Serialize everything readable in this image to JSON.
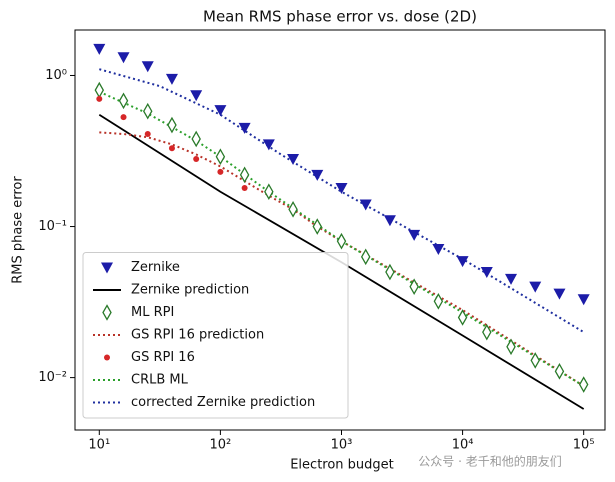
{
  "chart_data": {
    "type": "scatter",
    "title": "Mean RMS phase error vs. dose (2D)",
    "xlabel": "Electron budget",
    "ylabel": "RMS phase error",
    "xscale": "log",
    "yscale": "log",
    "xlim": [
      6.3,
      150000
    ],
    "ylim": [
      0.0045,
      2.0
    ],
    "xticks": [
      {
        "value": 10,
        "label": "10¹"
      },
      {
        "value": 100,
        "label": "10²"
      },
      {
        "value": 1000,
        "label": "10³"
      },
      {
        "value": 10000,
        "label": "10⁴"
      },
      {
        "value": 100000,
        "label": "10⁵"
      }
    ],
    "yticks": [
      {
        "value": 0.01,
        "label": "10⁻²"
      },
      {
        "value": 0.1,
        "label": "10⁻¹"
      },
      {
        "value": 1,
        "label": "10⁰"
      }
    ],
    "legend": "lower left",
    "annotation": "公众号 · 老千和他的朋友们",
    "series": [
      {
        "name": "Zernike",
        "kind": "marker",
        "marker": "triangle-down",
        "color": "#1c1ca8",
        "x": [
          10,
          15.85,
          25.12,
          39.81,
          63.1,
          100,
          158.5,
          251.2,
          398.1,
          631,
          1000,
          1585,
          2512,
          3981,
          6310,
          10000,
          15849,
          25119,
          39811,
          63096,
          100000
        ],
        "values": [
          1.5,
          1.32,
          1.15,
          0.95,
          0.74,
          0.59,
          0.45,
          0.35,
          0.28,
          0.22,
          0.18,
          0.14,
          0.11,
          0.088,
          0.071,
          0.059,
          0.05,
          0.045,
          0.04,
          0.036,
          0.033
        ]
      },
      {
        "name": "Zernike prediction",
        "kind": "line",
        "dash": "solid",
        "color": "#000000",
        "x": [
          10,
          100,
          1000,
          10000,
          100000
        ],
        "values": [
          0.55,
          0.17,
          0.058,
          0.019,
          0.0062
        ]
      },
      {
        "name": "ML RPI",
        "kind": "marker",
        "marker": "diamond",
        "color": "#2a7a2a",
        "x": [
          10,
          15.85,
          25.12,
          39.81,
          63.1,
          100,
          158.5,
          251.2,
          398.1,
          631,
          1000,
          1585,
          2512,
          3981,
          6310,
          10000,
          15849,
          25119,
          39811,
          63096,
          100000
        ],
        "values": [
          0.8,
          0.68,
          0.58,
          0.47,
          0.38,
          0.29,
          0.22,
          0.17,
          0.13,
          0.1,
          0.08,
          0.063,
          0.05,
          0.04,
          0.032,
          0.025,
          0.02,
          0.016,
          0.013,
          0.011,
          0.009
        ]
      },
      {
        "name": "GS RPI 16 prediction",
        "kind": "line",
        "dash": "dotted",
        "color": "#b83228",
        "x": [
          10,
          15.85,
          25.12,
          39.81,
          63.1,
          100,
          158.5,
          251.2,
          398.1,
          631,
          1000,
          10000,
          100000
        ],
        "values": [
          0.42,
          0.41,
          0.39,
          0.35,
          0.3,
          0.25,
          0.2,
          0.16,
          0.13,
          0.1,
          0.08,
          0.028,
          0.0088
        ]
      },
      {
        "name": "GS RPI 16",
        "kind": "marker",
        "marker": "circle",
        "color": "#d62728",
        "x": [
          10,
          15.85,
          25.12,
          39.81,
          63.1,
          100,
          158.5
        ],
        "values": [
          0.7,
          0.53,
          0.41,
          0.33,
          0.28,
          0.23,
          0.18
        ]
      },
      {
        "name": "CRLB ML",
        "kind": "line",
        "dash": "dotted",
        "color": "#2ca02c",
        "x": [
          10,
          25.12,
          63.1,
          100,
          251.2,
          1000,
          10000,
          100000
        ],
        "values": [
          0.78,
          0.56,
          0.37,
          0.29,
          0.17,
          0.08,
          0.027,
          0.0088
        ]
      },
      {
        "name": "corrected Zernike prediction",
        "kind": "line",
        "dash": "dotted",
        "color": "#1f2f9f",
        "x": [
          10,
          31.62,
          100,
          316.2,
          1000,
          10000,
          100000
        ],
        "values": [
          1.1,
          0.85,
          0.55,
          0.3,
          0.17,
          0.061,
          0.02
        ]
      }
    ]
  }
}
